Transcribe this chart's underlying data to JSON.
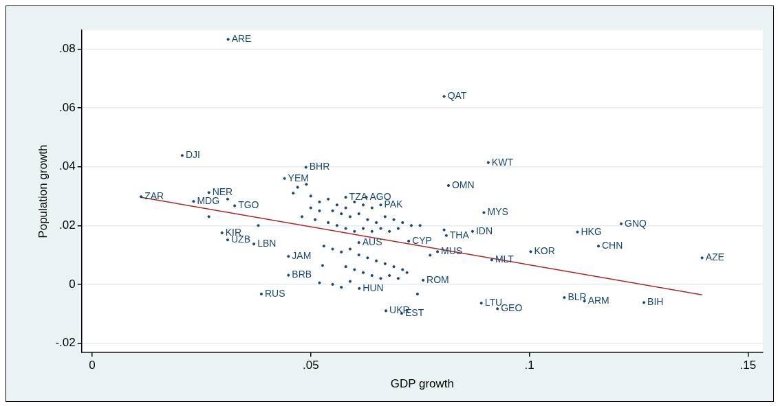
{
  "chart_data": {
    "type": "scatter",
    "xlabel": "GDP growth",
    "ylabel": "Population growth",
    "xlim": [
      -0.0024,
      0.1534
    ],
    "ylim": [
      -0.0232,
      0.0864
    ],
    "xticks": [
      0,
      {
        "value": 0.05,
        "label": ".05"
      },
      {
        "value": 0.1,
        "label": ".1"
      },
      {
        "value": 0.15,
        "label": ".15"
      }
    ],
    "yticks": [
      {
        "value": -0.02,
        "label": "-.02"
      },
      0,
      {
        "value": 0.02,
        "label": ".02"
      },
      {
        "value": 0.04,
        "label": ".04"
      },
      {
        "value": 0.06,
        "label": ".06"
      },
      {
        "value": 0.08,
        "label": ".08"
      }
    ],
    "grid": "y",
    "legend": false,
    "series": [
      {
        "marker": "circle",
        "color": "#1a476f",
        "x": [
          0.0311,
          0.0805,
          0.0206,
          0.0489,
          0.0906,
          0.0815,
          0.0267,
          0.0112,
          0.0232,
          0.031,
          0.0326,
          0.0896,
          0.0267,
          0.038,
          0.0297,
          0.031,
          0.037,
          0.121,
          0.111,
          0.0805,
          0.087,
          0.081,
          0.1158,
          0.1003,
          0.1395,
          0.0914,
          0.079,
          0.0773,
          0.0449,
          0.0724,
          0.0757,
          0.0449,
          0.0387,
          0.108,
          0.1126,
          0.1262,
          0.089,
          0.0927,
          0.0672,
          0.0708,
          0.0611,
          0.0527,
          0.0744,
          0.058,
          0.0627,
          0.066,
          0.061,
          0.044,
          0.049,
          0.047,
          0.046,
          0.05,
          0.052,
          0.054,
          0.056,
          0.058,
          0.06,
          0.062,
          0.064,
          0.05,
          0.052,
          0.055,
          0.057,
          0.059,
          0.061,
          0.063,
          0.065,
          0.067,
          0.069,
          0.071,
          0.048,
          0.051,
          0.054,
          0.056,
          0.058,
          0.06,
          0.062,
          0.064,
          0.066,
          0.068,
          0.07,
          0.073,
          0.075,
          0.053,
          0.055,
          0.057,
          0.059,
          0.061,
          0.063,
          0.065,
          0.067,
          0.069,
          0.071,
          0.058,
          0.06,
          0.062,
          0.064,
          0.066,
          0.068,
          0.07,
          0.072,
          0.052,
          0.055,
          0.057,
          0.059
        ],
        "values": [
          0.0833,
          0.0639,
          0.0438,
          0.0398,
          0.0414,
          0.0336,
          0.0312,
          0.0298,
          0.0282,
          0.029,
          0.0267,
          0.0244,
          0.023,
          0.02,
          0.0175,
          0.0151,
          0.0137,
          0.0206,
          0.0178,
          0.0185,
          0.018,
          0.0166,
          0.013,
          0.0111,
          0.009,
          0.0083,
          0.0111,
          0.0099,
          0.0095,
          0.0147,
          0.0014,
          0.0031,
          -0.0033,
          -0.0045,
          -0.0057,
          -0.0062,
          -0.0064,
          -0.0083,
          -0.009,
          -0.0099,
          -0.0014,
          0.0064,
          -0.0033,
          0.0296,
          0.0296,
          0.027,
          0.0142,
          0.036,
          0.034,
          0.033,
          0.031,
          0.03,
          0.028,
          0.029,
          0.027,
          0.026,
          0.028,
          0.027,
          0.026,
          0.026,
          0.025,
          0.025,
          0.024,
          0.023,
          0.024,
          0.022,
          0.021,
          0.023,
          0.022,
          0.021,
          0.023,
          0.022,
          0.021,
          0.02,
          0.019,
          0.018,
          0.019,
          0.018,
          0.019,
          0.018,
          0.019,
          0.02,
          0.02,
          0.013,
          0.012,
          0.011,
          0.012,
          0.01,
          0.009,
          0.008,
          0.007,
          0.006,
          0.005,
          0.006,
          0.005,
          0.004,
          0.003,
          0.002,
          0.003,
          0.002,
          0.004,
          0.0005,
          0,
          -0.001,
          0.001
        ]
      },
      {
        "type": "line",
        "marker": "none",
        "color": "#b22222",
        "x": [
          0.0112,
          0.1395
        ],
        "values": [
          0.0296,
          -0.0036
        ]
      }
    ],
    "annotations": [
      {
        "text": "ARE",
        "x": 0.0311,
        "y": 0.0833
      },
      {
        "text": "QAT",
        "x": 0.0805,
        "y": 0.0639
      },
      {
        "text": "DJI",
        "x": 0.0206,
        "y": 0.0438
      },
      {
        "text": "BHR",
        "x": 0.0489,
        "y": 0.0398
      },
      {
        "text": "KWT",
        "x": 0.0906,
        "y": 0.0414
      },
      {
        "text": "OMN",
        "x": 0.0815,
        "y": 0.0336
      },
      {
        "text": "NER",
        "x": 0.0267,
        "y": 0.0312
      },
      {
        "text": "ZAR",
        "x": 0.0112,
        "y": 0.0298
      },
      {
        "text": "MDG",
        "x": 0.0232,
        "y": 0.0282
      },
      {
        "text": "TGO",
        "x": 0.0326,
        "y": 0.0267
      },
      {
        "text": "MYS",
        "x": 0.0896,
        "y": 0.0244
      },
      {
        "text": "KIR",
        "x": 0.0297,
        "y": 0.0175
      },
      {
        "text": "UZB",
        "x": 0.031,
        "y": 0.0151
      },
      {
        "text": "LBN",
        "x": 0.037,
        "y": 0.0137
      },
      {
        "text": "GNQ",
        "x": 0.121,
        "y": 0.0206
      },
      {
        "text": "HKG",
        "x": 0.111,
        "y": 0.0178
      },
      {
        "text": "IDN",
        "x": 0.087,
        "y": 0.018
      },
      {
        "text": "THA",
        "x": 0.081,
        "y": 0.0166
      },
      {
        "text": "CHN",
        "x": 0.1158,
        "y": 0.013
      },
      {
        "text": "KOR",
        "x": 0.1003,
        "y": 0.0111
      },
      {
        "text": "AZE",
        "x": 0.1395,
        "y": 0.009
      },
      {
        "text": "MLT",
        "x": 0.0914,
        "y": 0.0083
      },
      {
        "text": "MUS",
        "x": 0.079,
        "y": 0.0111
      },
      {
        "text": "JAM",
        "x": 0.0449,
        "y": 0.0095
      },
      {
        "text": "CYP",
        "x": 0.0724,
        "y": 0.0147
      },
      {
        "text": "ROM",
        "x": 0.0757,
        "y": 0.0014
      },
      {
        "text": "BRB",
        "x": 0.0449,
        "y": 0.0031
      },
      {
        "text": "RUS",
        "x": 0.0387,
        "y": -0.0033
      },
      {
        "text": "BLR",
        "x": 0.108,
        "y": -0.0045
      },
      {
        "text": "ARM",
        "x": 0.1126,
        "y": -0.0057
      },
      {
        "text": "BIH",
        "x": 0.1262,
        "y": -0.0062
      },
      {
        "text": "LTU",
        "x": 0.089,
        "y": -0.0064
      },
      {
        "text": "GEO",
        "x": 0.0927,
        "y": -0.0083
      },
      {
        "text": "UKR",
        "x": 0.0672,
        "y": -0.009
      },
      {
        "text": "EST",
        "x": 0.0708,
        "y": -0.0099
      },
      {
        "text": "HUN",
        "x": 0.0611,
        "y": -0.0014
      },
      {
        "text": "TZA",
        "x": 0.058,
        "y": 0.0296
      },
      {
        "text": "AGO",
        "x": 0.0627,
        "y": 0.0296
      },
      {
        "text": "PAK",
        "x": 0.066,
        "y": 0.027
      },
      {
        "text": "AUS",
        "x": 0.061,
        "y": 0.0142
      },
      {
        "text": "YEM",
        "x": 0.044,
        "y": 0.036
      }
    ]
  }
}
